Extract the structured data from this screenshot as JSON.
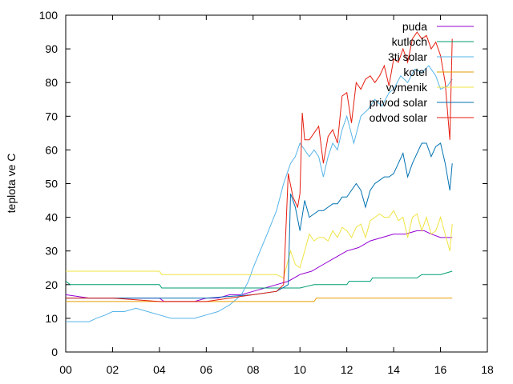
{
  "chart_data": {
    "type": "line",
    "title": "",
    "xlabel": "",
    "ylabel": "teplota ve C",
    "xlim": [
      0,
      18
    ],
    "ylim": [
      0,
      100
    ],
    "xtick_values": [
      0,
      2,
      4,
      6,
      8,
      10,
      12,
      14,
      16,
      18
    ],
    "xtick_labels": [
      "00",
      "02",
      "04",
      "06",
      "08",
      "10",
      "12",
      "14",
      "16",
      "18"
    ],
    "ytick_values": [
      0,
      10,
      20,
      30,
      40,
      50,
      60,
      70,
      80,
      90,
      100
    ],
    "ytick_labels": [
      "0",
      "10",
      "20",
      "30",
      "40",
      "50",
      "60",
      "70",
      "80",
      "90",
      "100"
    ],
    "grid": false,
    "legend_position": "top-right",
    "series": [
      {
        "name": "puda",
        "color": "#9400d3",
        "x": [
          0,
          1,
          2,
          3,
          4,
          4.2,
          5,
          5.5,
          6,
          6.5,
          7,
          7.5,
          8,
          8.5,
          9,
          9.5,
          10,
          10.5,
          11,
          11.5,
          12,
          12.5,
          13,
          13.5,
          14,
          14.5,
          15,
          15.3,
          15.6,
          16,
          16.5
        ],
        "y": [
          17,
          16,
          16,
          16,
          16,
          15,
          15,
          15,
          16,
          16,
          17,
          17,
          18,
          19,
          20,
          21,
          23,
          24,
          26,
          28,
          30,
          31,
          33,
          34,
          35,
          35,
          36,
          36,
          35,
          34,
          34
        ]
      },
      {
        "name": "kutloch",
        "color": "#009e73",
        "x": [
          0,
          0.2,
          1,
          2,
          3,
          4,
          4.1,
          5,
          6,
          7,
          8,
          9,
          10,
          10.6,
          11,
          12,
          12.1,
          13,
          13.1,
          14,
          14.2,
          15,
          15.2,
          16,
          16.5
        ],
        "y": [
          21,
          20,
          20,
          20,
          20,
          20,
          19,
          19,
          19,
          19,
          19,
          19,
          19,
          20,
          20,
          20,
          21,
          21,
          22,
          22,
          22,
          22,
          23,
          23,
          24
        ]
      },
      {
        "name": "3ti solar",
        "color": "#56b4e9",
        "x": [
          0,
          0.5,
          1,
          1.3,
          1.7,
          2,
          2.5,
          3,
          3.5,
          4,
          4.5,
          5,
          5.5,
          6,
          6.5,
          7,
          7.5,
          7.8,
          8,
          8.3,
          8.6,
          9,
          9.3,
          9.6,
          9.8,
          10,
          10.2,
          10.4,
          10.6,
          10.8,
          11,
          11.2,
          11.4,
          11.6,
          11.8,
          12,
          12.3,
          12.6,
          12.9,
          13.2,
          13.5,
          13.8,
          14,
          14.3,
          14.6,
          14.9,
          15.2,
          15.5,
          15.8,
          16,
          16.3,
          16.5
        ],
        "y": [
          9,
          9,
          9,
          10,
          11,
          12,
          12,
          13,
          12,
          11,
          10,
          10,
          10,
          11,
          12,
          14,
          17,
          21,
          25,
          30,
          35,
          42,
          50,
          56,
          58,
          62,
          60,
          58,
          60,
          58,
          52,
          58,
          62,
          60,
          66,
          70,
          62,
          70,
          72,
          75,
          73,
          77,
          78,
          82,
          80,
          84,
          83,
          85,
          82,
          78,
          79,
          81
        ]
      },
      {
        "name": "kotel",
        "color": "#e69f00",
        "x": [
          0,
          4,
          6,
          8,
          10,
          10.6,
          10.7,
          12,
          14,
          16,
          16.5
        ],
        "y": [
          15,
          15,
          15,
          15,
          15,
          15,
          16,
          16,
          16,
          16,
          16
        ]
      },
      {
        "name": "vymenik",
        "color": "#f0e442",
        "x": [
          0,
          1,
          2,
          3,
          4,
          4.1,
          5,
          6,
          7,
          8,
          8.5,
          9,
          9.3,
          9.6,
          9.8,
          10,
          10.2,
          10.4,
          10.6,
          10.8,
          11,
          11.2,
          11.4,
          11.6,
          11.8,
          12,
          12.2,
          12.4,
          12.6,
          12.8,
          13,
          13.2,
          13.4,
          13.6,
          13.8,
          14,
          14.2,
          14.4,
          14.6,
          14.8,
          15,
          15.2,
          15.4,
          15.6,
          15.8,
          16,
          16.2,
          16.4,
          16.5
        ],
        "y": [
          24,
          24,
          24,
          24,
          24,
          23,
          23,
          23,
          23,
          23,
          23,
          23,
          22,
          30,
          26,
          25,
          30,
          35,
          33,
          34,
          34,
          33,
          36,
          34,
          37,
          36,
          34,
          37,
          38,
          34,
          39,
          40,
          41,
          40,
          40,
          42,
          39,
          40,
          34,
          40,
          41,
          36,
          40,
          35,
          36,
          40,
          35,
          30,
          38
        ]
      },
      {
        "name": "privod solar",
        "color": "#0072b2",
        "x": [
          0,
          2,
          4,
          6,
          8,
          9,
          9.5,
          9.6,
          9.8,
          10,
          10.2,
          10.4,
          10.6,
          10.8,
          11,
          11.2,
          11.4,
          11.6,
          11.8,
          12,
          12.2,
          12.4,
          12.6,
          12.8,
          13,
          13.2,
          13.4,
          13.6,
          13.8,
          14,
          14.2,
          14.4,
          14.6,
          14.8,
          15,
          15.2,
          15.4,
          15.6,
          15.8,
          16,
          16.2,
          16.4,
          16.5
        ],
        "y": [
          16,
          16,
          16,
          16,
          17,
          18,
          20,
          47,
          43,
          36,
          45,
          40,
          41,
          42,
          42,
          43,
          44,
          44,
          46,
          46,
          48,
          50,
          48,
          43,
          48,
          50,
          51,
          52,
          52,
          53,
          56,
          59,
          52,
          56,
          59,
          62,
          62,
          58,
          61,
          62,
          56,
          48,
          56
        ]
      },
      {
        "name": "odvod solar",
        "color": "#e51e10",
        "x": [
          0,
          2,
          4,
          6,
          8,
          9,
          9.3,
          9.5,
          9.7,
          9.9,
          10,
          10.1,
          10.2,
          10.4,
          10.6,
          10.8,
          11,
          11.2,
          11.4,
          11.6,
          11.8,
          12,
          12.2,
          12.4,
          12.6,
          12.8,
          13,
          13.2,
          13.4,
          13.6,
          13.8,
          14,
          14.2,
          14.4,
          14.6,
          14.8,
          15,
          15.2,
          15.4,
          15.6,
          15.8,
          16,
          16.2,
          16.4,
          16.5
        ],
        "y": [
          16,
          16,
          15,
          15,
          17,
          18,
          20,
          53,
          46,
          43,
          47,
          71,
          63,
          63,
          65,
          67,
          56,
          64,
          66,
          62,
          76,
          77,
          68,
          80,
          78,
          81,
          82,
          80,
          82,
          85,
          79,
          87,
          86,
          90,
          86,
          93,
          95,
          93,
          94,
          90,
          92,
          88,
          80,
          63,
          93
        ]
      }
    ]
  }
}
